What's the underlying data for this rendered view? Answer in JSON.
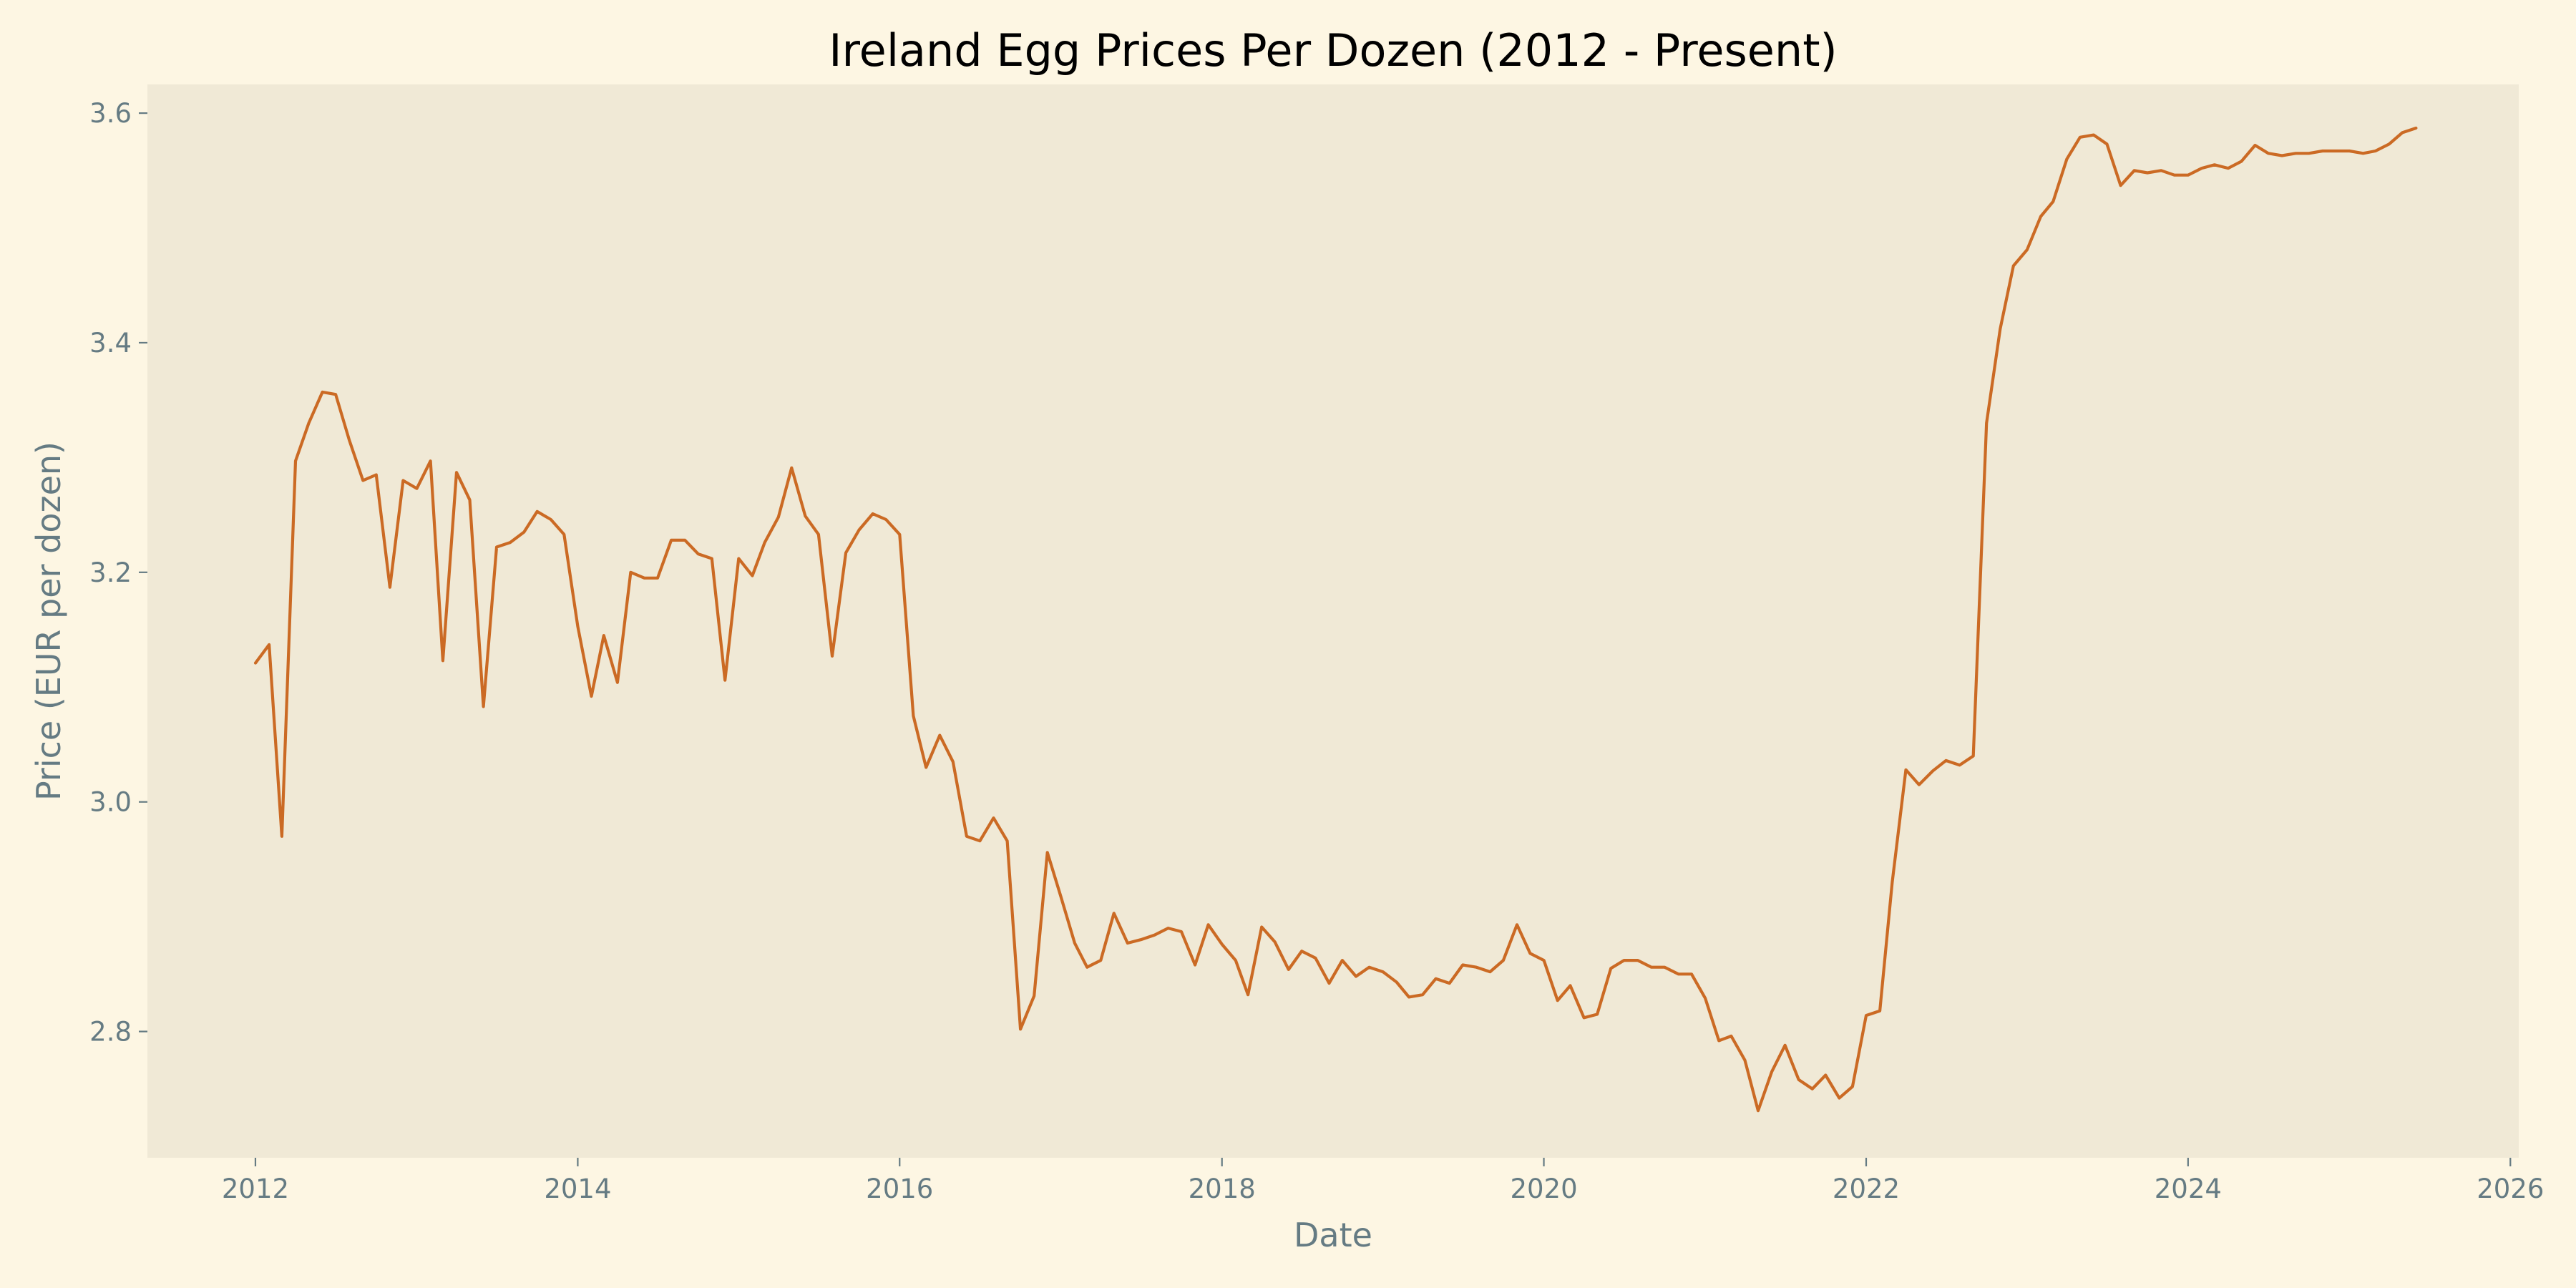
{
  "chart_data": {
    "type": "line",
    "title": "Ireland Egg Prices Per Dozen (2012 - Present)",
    "xlabel": "Date",
    "ylabel": "Price (EUR per dozen)",
    "x_axis_type": "date",
    "xlim": [
      "2011-05-01",
      "2026-01-20"
    ],
    "ylim": [
      2.69,
      3.625
    ],
    "x_ticks": [
      {
        "value": "2012-01-01",
        "label": "2012"
      },
      {
        "value": "2014-01-01",
        "label": "2014"
      },
      {
        "value": "2016-01-01",
        "label": "2016"
      },
      {
        "value": "2018-01-01",
        "label": "2018"
      },
      {
        "value": "2020-01-01",
        "label": "2020"
      },
      {
        "value": "2022-01-01",
        "label": "2022"
      },
      {
        "value": "2024-01-01",
        "label": "2024"
      },
      {
        "value": "2026-01-01",
        "label": "2026"
      }
    ],
    "y_ticks": [
      {
        "value": 2.8,
        "label": "2.8"
      },
      {
        "value": 3.0,
        "label": "3.0"
      },
      {
        "value": 3.2,
        "label": "3.2"
      },
      {
        "value": 3.4,
        "label": "3.4"
      },
      {
        "value": 3.6,
        "label": "3.6"
      }
    ],
    "grid": false,
    "legend": "none",
    "colors": {
      "figure_background": "#fdf6e3",
      "plot_background": "#f0e9d6",
      "line": "#cb6a24",
      "axis_text": "#657b83",
      "title_text": "#000000"
    },
    "series": [
      {
        "x": [
          "2012-01",
          "2012-02",
          "2012-03",
          "2012-04",
          "2012-05",
          "2012-06",
          "2012-07",
          "2012-08",
          "2012-09",
          "2012-10",
          "2012-11",
          "2012-12",
          "2013-01",
          "2013-02",
          "2013-03",
          "2013-04",
          "2013-05",
          "2013-06",
          "2013-07",
          "2013-08",
          "2013-09",
          "2013-10",
          "2013-11",
          "2013-12",
          "2014-01",
          "2014-02",
          "2014-03",
          "2014-04",
          "2014-05",
          "2014-06",
          "2014-07",
          "2014-08",
          "2014-09",
          "2014-10",
          "2014-11",
          "2014-12",
          "2015-01",
          "2015-02",
          "2015-03",
          "2015-04",
          "2015-05",
          "2015-06",
          "2015-07",
          "2015-08",
          "2015-09",
          "2015-10",
          "2015-11",
          "2015-12",
          "2016-01",
          "2016-02",
          "2016-03",
          "2016-04",
          "2016-05",
          "2016-06",
          "2016-07",
          "2016-08",
          "2016-09",
          "2016-10",
          "2016-11",
          "2016-12",
          "2017-01",
          "2017-02",
          "2017-03",
          "2017-04",
          "2017-05",
          "2017-06",
          "2017-07",
          "2017-08",
          "2017-09",
          "2017-10",
          "2017-11",
          "2017-12",
          "2018-01",
          "2018-02",
          "2018-03",
          "2018-04",
          "2018-05",
          "2018-06",
          "2018-07",
          "2018-08",
          "2018-09",
          "2018-10",
          "2018-11",
          "2018-12",
          "2019-01",
          "2019-02",
          "2019-03",
          "2019-04",
          "2019-05",
          "2019-06",
          "2019-07",
          "2019-08",
          "2019-09",
          "2019-10",
          "2019-11",
          "2019-12",
          "2020-01",
          "2020-02",
          "2020-03",
          "2020-04",
          "2020-05",
          "2020-06",
          "2020-07",
          "2020-08",
          "2020-09",
          "2020-10",
          "2020-11",
          "2020-12",
          "2021-01",
          "2021-02",
          "2021-03",
          "2021-04",
          "2021-05",
          "2021-06",
          "2021-07",
          "2021-08",
          "2021-09",
          "2021-10",
          "2021-11",
          "2021-12",
          "2022-01",
          "2022-02",
          "2022-03",
          "2022-04",
          "2022-05",
          "2022-06",
          "2022-07",
          "2022-08",
          "2022-09",
          "2022-10",
          "2022-11",
          "2022-12",
          "2023-01",
          "2023-02",
          "2023-03",
          "2023-04",
          "2023-05",
          "2023-06",
          "2023-07",
          "2023-08",
          "2023-09",
          "2023-10",
          "2023-11",
          "2023-12",
          "2024-01",
          "2024-02",
          "2024-03",
          "2024-04",
          "2024-05",
          "2024-06",
          "2024-07",
          "2024-08",
          "2024-09",
          "2024-10",
          "2024-11",
          "2024-12",
          "2025-01",
          "2025-02",
          "2025-03",
          "2025-04",
          "2025-05",
          "2025-06"
        ],
        "values": [
          3.121,
          3.137,
          2.97,
          3.297,
          3.33,
          3.357,
          3.355,
          3.315,
          3.28,
          3.285,
          3.187,
          3.28,
          3.273,
          3.297,
          3.123,
          3.287,
          3.263,
          3.083,
          3.222,
          3.226,
          3.235,
          3.253,
          3.246,
          3.233,
          3.153,
          3.092,
          3.145,
          3.104,
          3.2,
          3.195,
          3.195,
          3.228,
          3.228,
          3.216,
          3.212,
          3.106,
          3.212,
          3.197,
          3.226,
          3.248,
          3.291,
          3.249,
          3.233,
          3.127,
          3.217,
          3.237,
          3.251,
          3.246,
          3.233,
          3.075,
          3.03,
          3.058,
          3.035,
          2.97,
          2.966,
          2.986,
          2.966,
          2.802,
          2.831,
          2.956,
          2.917,
          2.877,
          2.856,
          2.862,
          2.903,
          2.877,
          2.88,
          2.884,
          2.89,
          2.887,
          2.858,
          2.893,
          2.876,
          2.862,
          2.832,
          2.891,
          2.878,
          2.854,
          2.87,
          2.864,
          2.842,
          2.862,
          2.848,
          2.856,
          2.852,
          2.843,
          2.83,
          2.832,
          2.846,
          2.842,
          2.858,
          2.856,
          2.852,
          2.862,
          2.893,
          2.868,
          2.862,
          2.827,
          2.84,
          2.812,
          2.815,
          2.855,
          2.862,
          2.862,
          2.856,
          2.856,
          2.85,
          2.85,
          2.829,
          2.792,
          2.796,
          2.775,
          2.731,
          2.765,
          2.788,
          2.758,
          2.75,
          2.762,
          2.742,
          2.752,
          2.814,
          2.818,
          2.93,
          3.028,
          3.015,
          3.027,
          3.036,
          3.032,
          3.04,
          3.33,
          3.412,
          3.467,
          3.481,
          3.51,
          3.523,
          3.56,
          3.579,
          3.581,
          3.573,
          3.537,
          3.55,
          3.548,
          3.55,
          3.546,
          3.546,
          3.552,
          3.555,
          3.552,
          3.558,
          3.572,
          3.565,
          3.563,
          3.565,
          3.565,
          3.567,
          3.567,
          3.567,
          3.565,
          3.567,
          3.573,
          3.583,
          3.587
        ]
      }
    ]
  }
}
